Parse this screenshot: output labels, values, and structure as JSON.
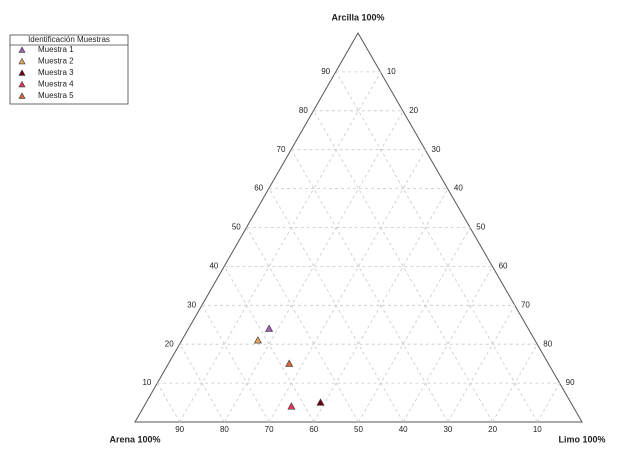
{
  "chart_data": {
    "type": "ternary",
    "top_label": "Arcilla 100%",
    "left_label": "Arena 100%",
    "right_label": "Limo 100%",
    "legend_title": "Identificación Muestras",
    "arcilla_ticks": [
      10,
      20,
      30,
      40,
      50,
      60,
      70,
      80,
      90
    ],
    "arena_ticks": [
      90,
      80,
      70,
      60,
      50,
      40,
      30,
      20,
      10
    ],
    "limo_ticks": [
      10,
      20,
      30,
      40,
      50,
      60,
      70,
      80,
      90
    ],
    "grid": true,
    "series": [
      {
        "name": "Muestra 1",
        "color": "#a25fb4",
        "arena": 58,
        "limo": 18,
        "arcilla": 24
      },
      {
        "name": "Muestra 2",
        "color": "#e9a25e",
        "arena": 62,
        "limo": 17,
        "arcilla": 21
      },
      {
        "name": "Muestra 3",
        "color": "#6e0014",
        "arena": 56,
        "limo": 39,
        "arcilla": 5
      },
      {
        "name": "Muestra 4",
        "color": "#e8325c",
        "arena": 63,
        "limo": 33,
        "arcilla": 4
      },
      {
        "name": "Muestra 5",
        "color": "#da6438",
        "arena": 58,
        "limo": 27,
        "arcilla": 15
      }
    ]
  }
}
